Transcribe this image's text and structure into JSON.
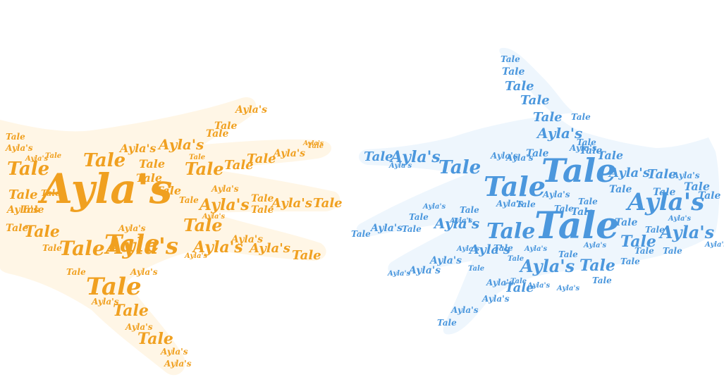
{
  "words": {
    "first": "Ayla's",
    "second": "Tale"
  },
  "colors": {
    "orange_word": "#f0a020",
    "orange_hand": "#fff6e6",
    "blue_word": "#4b97dd",
    "blue_hand": "#eef6fd"
  }
}
